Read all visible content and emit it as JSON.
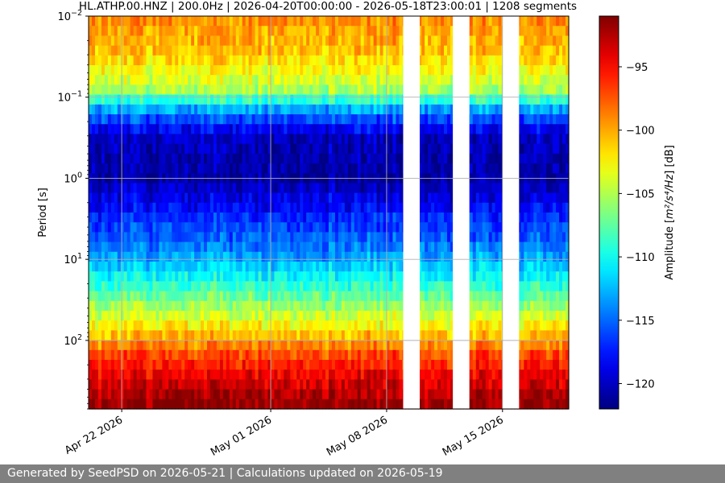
{
  "chart_data": {
    "type": "heatmap",
    "title": "HL.ATHP.00.HNZ | 200.0Hz | 2026-04-20T00:00:00 - 2026-05-18T23:00:01 | 1208 segments",
    "ylabel": "Period [s]",
    "colorbar_label_prefix": "Amplitude [",
    "colorbar_label_unit": "m²/s⁴/Hz",
    "colorbar_label_suffix": "] [dB]",
    "y_scale": "log",
    "y_inverted": true,
    "ylim": [
      0.01,
      700
    ],
    "y_tick_values": [
      0.01,
      0.1,
      1,
      10,
      100
    ],
    "y_tick_bases": [
      "10",
      "10",
      "10",
      "10",
      "10"
    ],
    "y_tick_exponents": [
      "−2",
      "−1",
      "0",
      "1",
      "2"
    ],
    "xlim": [
      "2026-04-20T00:00:00",
      "2026-05-19T00:00:00"
    ],
    "x_ticks": [
      {
        "date": "2026-04-22",
        "label": "Apr 22 2026"
      },
      {
        "date": "2026-05-01",
        "label": "May 01 2026"
      },
      {
        "date": "2026-05-08",
        "label": "May 08 2026"
      },
      {
        "date": "2026-05-15",
        "label": "May 15 2026"
      }
    ],
    "data_gaps": [
      [
        "2026-05-09T00:00:00",
        "2026-05-10T00:00:00"
      ],
      [
        "2026-05-12T00:00:00",
        "2026-05-13T00:00:00"
      ],
      [
        "2026-05-15T00:00:00",
        "2026-05-16T00:00:00"
      ]
    ],
    "colorbar_range": [
      -122,
      -91
    ],
    "colorbar_ticks": [
      -95,
      -100,
      -105,
      -110,
      -115,
      -120
    ],
    "colorbar_tick_labels": [
      "−95",
      "−100",
      "−105",
      "−110",
      "−115",
      "−120"
    ],
    "colormap": "jet",
    "grid": true,
    "profile": [
      {
        "period": 0.01,
        "db": -99
      },
      {
        "period": 0.03,
        "db": -101
      },
      {
        "period": 0.08,
        "db": -105
      },
      {
        "period": 0.15,
        "db": -114
      },
      {
        "period": 0.3,
        "db": -120
      },
      {
        "period": 1,
        "db": -121
      },
      {
        "period": 3,
        "db": -117
      },
      {
        "period": 6,
        "db": -115
      },
      {
        "period": 10,
        "db": -113
      },
      {
        "period": 25,
        "db": -108
      },
      {
        "period": 60,
        "db": -103
      },
      {
        "period": 150,
        "db": -97
      },
      {
        "period": 300,
        "db": -94
      },
      {
        "period": 700,
        "db": -91
      }
    ]
  },
  "footer": {
    "text": "Generated by SeedPSD on 2026-05-21 | Calculations updated on 2026-05-19"
  }
}
